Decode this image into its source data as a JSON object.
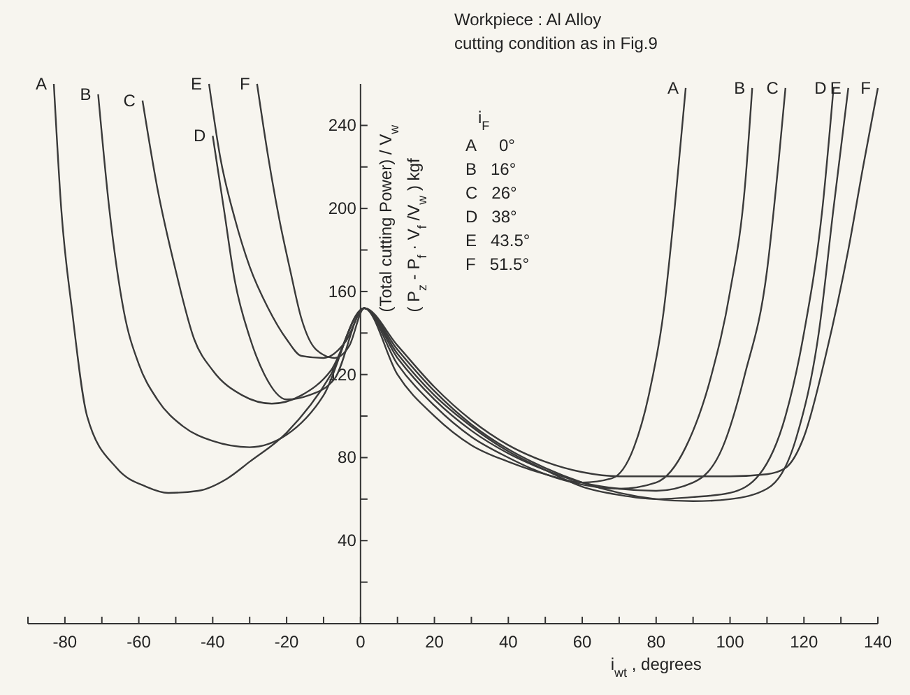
{
  "chart_data": {
    "type": "line",
    "xlabel": "i$_{wt}$, degrees",
    "ylabel": "(Total cutting Power) / V$_{w}$\n( P$_{z}$ - P$_{f}$ · V$_{f}$/V$_{w}$ )  kgf",
    "legend_title": "i$_{F}$",
    "annotations": [
      "Workpiece : Al Alloy",
      "cutting condition as in Fig.9",
      "A     0°",
      "B   16°",
      "C   26°",
      "D   38°",
      "E   43.5°",
      "F   51.5°"
    ],
    "xlim": [
      -90,
      140
    ],
    "xticks": [
      {
        "value": -90,
        "label": null
      },
      -80,
      {
        "value": -70,
        "label": null
      },
      -60,
      {
        "value": -50,
        "label": null
      },
      -40,
      {
        "value": -30,
        "label": null
      },
      -20,
      {
        "value": -10,
        "label": null
      },
      0,
      {
        "value": 10,
        "label": null
      },
      20,
      {
        "value": 30,
        "label": null
      },
      40,
      {
        "value": 50,
        "label": null
      },
      60,
      {
        "value": 70,
        "label": null
      },
      80,
      {
        "value": 90,
        "label": null
      },
      100,
      {
        "value": 110,
        "label": null
      },
      120,
      {
        "value": 130,
        "label": null
      },
      140
    ],
    "ylim": [
      0,
      260
    ],
    "yticks": [
      {
        "value": 20,
        "label": null
      },
      40,
      {
        "value": 60,
        "label": null
      },
      80,
      {
        "value": 100,
        "label": null
      },
      120,
      {
        "value": 140,
        "label": null
      },
      160,
      {
        "value": 180,
        "label": null
      },
      200,
      {
        "value": 220,
        "label": null
      },
      240
    ],
    "grid": false,
    "marker": "none",
    "line_style": "solid",
    "series": [
      {
        "name": "A",
        "color": "#3a3a3a",
        "x": [
          -83,
          -81,
          -78,
          -74,
          -66,
          -58,
          -52,
          -44,
          -36,
          -30,
          -20,
          -8,
          1,
          10,
          20,
          30,
          40,
          50,
          60,
          68,
          74,
          78,
          82,
          85,
          88
        ],
        "values": [
          260,
          200,
          150,
          100,
          75,
          66,
          63,
          64,
          70,
          78,
          92,
          120,
          152,
          120,
          100,
          86,
          78,
          72,
          68,
          70,
          85,
          110,
          150,
          200,
          258
        ]
      },
      {
        "name": "B",
        "color": "#3a3a3a",
        "x": [
          -71,
          -68,
          -64,
          -60,
          -55,
          -48,
          -40,
          -30,
          -20,
          -10,
          1,
          10,
          20,
          30,
          40,
          50,
          60,
          70,
          80,
          88,
          95,
          100,
          104,
          106
        ],
        "values": [
          255,
          200,
          150,
          125,
          108,
          95,
          88,
          85,
          91,
          110,
          152,
          125,
          105,
          90,
          80,
          72,
          67,
          65,
          68,
          85,
          120,
          160,
          210,
          258
        ]
      },
      {
        "name": "C",
        "color": "#3a3a3a",
        "x": [
          -59,
          -55,
          -50,
          -45,
          -40,
          -32,
          -24,
          -16,
          -8,
          1,
          10,
          20,
          30,
          40,
          50,
          60,
          70,
          80,
          90,
          98,
          104,
          110,
          113,
          115
        ],
        "values": [
          252,
          210,
          170,
          137,
          122,
          110,
          106,
          110,
          122,
          152,
          128,
          108,
          93,
          82,
          74,
          68,
          65,
          64,
          68,
          85,
          120,
          170,
          220,
          258
        ]
      },
      {
        "name": "D",
        "color": "#3a3a3a",
        "x": [
          -40,
          -37,
          -34,
          -30,
          -26,
          -20,
          -14,
          -7,
          1,
          10,
          20,
          30,
          40,
          50,
          60,
          70,
          80,
          90,
          100,
          108,
          115,
          120,
          125,
          128
        ],
        "values": [
          235,
          200,
          165,
          138,
          120,
          108,
          110,
          118,
          152,
          130,
          110,
          95,
          83,
          74,
          66,
          62,
          60,
          61,
          63,
          72,
          100,
          140,
          200,
          258
        ]
      },
      {
        "name": "E",
        "color": "#3a3a3a",
        "x": [
          -41,
          -38,
          -34,
          -30,
          -25,
          -20,
          -16,
          -10,
          -4,
          1,
          10,
          20,
          30,
          40,
          50,
          60,
          70,
          80,
          90,
          100,
          110,
          118,
          124,
          128,
          132
        ],
        "values": [
          260,
          225,
          195,
          172,
          152,
          137,
          129,
          128,
          136,
          152,
          132,
          112,
          96,
          84,
          75,
          68,
          63,
          60,
          59,
          60,
          65,
          90,
          140,
          200,
          258
        ]
      },
      {
        "name": "F",
        "color": "#3a3a3a",
        "x": [
          -28,
          -25,
          -22,
          -19,
          -16,
          -12,
          -7,
          -3,
          1,
          10,
          20,
          30,
          40,
          50,
          60,
          70,
          80,
          90,
          100,
          110,
          115,
          120,
          126,
          132,
          136,
          140
        ],
        "values": [
          260,
          225,
          195,
          170,
          147,
          132,
          128,
          134,
          152,
          134,
          114,
          98,
          86,
          78,
          73,
          71,
          71,
          71,
          71,
          72,
          75,
          90,
          130,
          180,
          220,
          258
        ]
      }
    ]
  }
}
